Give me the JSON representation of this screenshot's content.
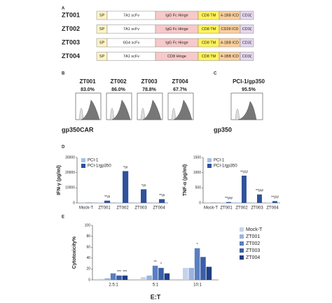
{
  "panel_letters": [
    "A",
    "B",
    "C",
    "D",
    "E"
  ],
  "constructs": {
    "segment_colors": [
      "#fdf3c4",
      "#ffffff",
      "#f7c9c9",
      "#fff35c",
      "#fbcf9d",
      "#e6d8ef"
    ],
    "rows": [
      {
        "name": "ZT001",
        "segments": [
          "SP",
          "7A1 scFv",
          "IgG Fc Hinge",
          "CD8 TM",
          "4-1BB ICD",
          "CD3ζ"
        ]
      },
      {
        "name": "ZT002",
        "segments": [
          "SP",
          "7A1 scFv",
          "IgG Fc Hinge",
          "CD8 TM",
          "CD28 ICD",
          "CD3ζ"
        ]
      },
      {
        "name": "ZT003",
        "segments": [
          "SP",
          "6G4 scFv",
          "IgG Fc Hinge",
          "CD8 TM",
          "4-1BB ICD",
          "CD3ζ"
        ]
      },
      {
        "name": "ZT004",
        "segments": [
          "SP",
          "7A1 scFv",
          "CD8 Hinge",
          "CD8 TM",
          "4-1BB ICD",
          "CD3ζ"
        ]
      }
    ]
  },
  "flow": {
    "b_panels": [
      {
        "name": "ZT001",
        "percent": "83.0%"
      },
      {
        "name": "ZT002",
        "percent": "86.0%"
      },
      {
        "name": "ZT003",
        "percent": "78.8%"
      },
      {
        "name": "ZT004",
        "percent": "67.7%"
      }
    ],
    "b_axis": "gp350CAR",
    "c_panel": {
      "name": "PCI-1/gp350",
      "percent": "95.5%"
    },
    "c_axis": "gp350"
  },
  "chart_data": [
    {
      "type": "bar",
      "y_label": "IFN-γ (pg/ml)",
      "legend": "upper left",
      "categories": [
        "Mock-T",
        "ZT001",
        "ZT002",
        "ZT003",
        "ZT004"
      ],
      "series": [
        {
          "name": "PCI-1",
          "color": "#a9bfe3",
          "values": [
            100,
            150,
            300,
            200,
            150
          ]
        },
        {
          "name": "PCI-1/gp350",
          "color": "#2f529a",
          "values": [
            150,
            1500,
            21000,
            9000,
            2500
          ],
          "significance": [
            null,
            "**/#",
            "*/#",
            "*/#",
            "**/#"
          ]
        }
      ],
      "ylim": [
        0,
        30000
      ],
      "yticks": [
        0,
        10000,
        20000,
        30000
      ]
    },
    {
      "type": "bar",
      "y_label": "TNF-α (pg/ml)",
      "legend": "upper left",
      "categories": [
        "Mock-T",
        "ZT001",
        "ZT002",
        "ZT003",
        "ZT004"
      ],
      "series": [
        {
          "name": "PCI-1",
          "color": "#a9bfe3",
          "values": [
            5,
            10,
            15,
            10,
            10
          ]
        },
        {
          "name": "PCI-1/gp350",
          "color": "#2f529a",
          "values": [
            5,
            30,
            900,
            280,
            60
          ],
          "significance": [
            null,
            "**/##",
            "**/##",
            "**/##",
            "**/##"
          ]
        }
      ],
      "ylim": [
        0,
        1500
      ],
      "yticks": [
        0,
        500,
        1000,
        1500
      ]
    },
    {
      "type": "bar",
      "y_label": "Cytotoxicity%",
      "x_label": "E:T",
      "legend": "right",
      "categories": [
        "2.5:1",
        "5:1",
        "10:1"
      ],
      "series": [
        {
          "name": "Mock-T",
          "color": "#c5d3ea",
          "values": [
            2,
            5,
            22
          ]
        },
        {
          "name": "ZT001",
          "color": "#9ab3dc",
          "values": [
            3,
            8,
            22
          ]
        },
        {
          "name": "ZT002",
          "color": "#5a7fc0",
          "values": [
            12,
            26,
            58
          ],
          "significance": [
            null,
            "**",
            "*"
          ]
        },
        {
          "name": "ZT003",
          "color": "#3b5ea9",
          "values": [
            8,
            22,
            42
          ],
          "significance": [
            "***",
            "*",
            null
          ]
        },
        {
          "name": "ZT004",
          "color": "#1f3f86",
          "values": [
            8,
            12,
            24
          ],
          "significance": [
            "***",
            null,
            null
          ]
        }
      ],
      "ylim": [
        0,
        100
      ],
      "yticks": [
        0,
        20,
        40,
        60,
        80,
        100
      ]
    }
  ]
}
